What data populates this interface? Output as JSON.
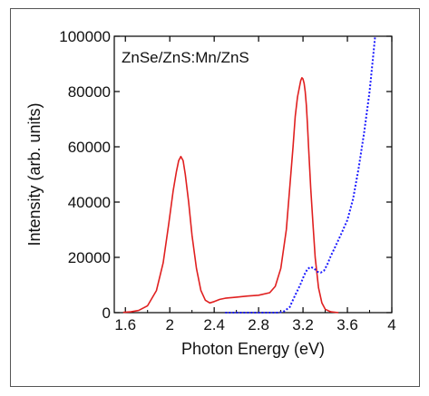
{
  "chart_data": {
    "type": "line",
    "title": "",
    "annotation": "ZnSe/ZnS:Mn/ZnS",
    "xlabel": "Photon Energy (eV)",
    "ylabel": "Intensity (arb. units)",
    "xlim": [
      1.5,
      4.0
    ],
    "ylim": [
      0,
      100000
    ],
    "x_ticks": [
      "1.6",
      "2",
      "2.4",
      "2.8",
      "3.2",
      "3.6",
      "4"
    ],
    "x_tick_values": [
      1.6,
      2.0,
      2.4,
      2.8,
      3.2,
      3.6,
      4.0
    ],
    "y_ticks": [
      "0",
      "20000",
      "40000",
      "60000",
      "80000",
      "100000"
    ],
    "y_tick_values": [
      0,
      20000,
      40000,
      60000,
      80000,
      100000
    ],
    "grid": false,
    "legend": "none",
    "series": [
      {
        "style": "solid",
        "color": "#e02020",
        "x": [
          1.58,
          1.65,
          1.72,
          1.8,
          1.88,
          1.94,
          1.99,
          2.03,
          2.06,
          2.08,
          2.1,
          2.12,
          2.14,
          2.17,
          2.2,
          2.24,
          2.28,
          2.32,
          2.36,
          2.4,
          2.45,
          2.5,
          2.6,
          2.7,
          2.8,
          2.9,
          2.95,
          3.0,
          3.05,
          3.08,
          3.11,
          3.13,
          3.15,
          3.17,
          3.18,
          3.19,
          3.2,
          3.21,
          3.22,
          3.23,
          3.24,
          3.25,
          3.27,
          3.29,
          3.31,
          3.34,
          3.37,
          3.4,
          3.45,
          3.52
        ],
        "y": [
          100,
          300,
          800,
          2500,
          8000,
          18000,
          32000,
          44000,
          51000,
          55000,
          56500,
          55000,
          50000,
          40000,
          28000,
          16000,
          8000,
          4500,
          3500,
          4000,
          4800,
          5200,
          5600,
          6000,
          6300,
          7200,
          9500,
          16000,
          30000,
          45000,
          60000,
          71000,
          78000,
          82000,
          84000,
          85000,
          84500,
          83000,
          80000,
          75000,
          68000,
          60000,
          45000,
          32000,
          20000,
          9000,
          3500,
          1200,
          300,
          0
        ]
      },
      {
        "style": "dotted",
        "color": "#1a1aff",
        "x": [
          2.5,
          2.6,
          2.7,
          2.8,
          2.9,
          2.98,
          3.03,
          3.08,
          3.12,
          3.15,
          3.18,
          3.21,
          3.24,
          3.27,
          3.3,
          3.33,
          3.36,
          3.39,
          3.42,
          3.45,
          3.48,
          3.51,
          3.55,
          3.6,
          3.65,
          3.7,
          3.75,
          3.8,
          3.83,
          3.85
        ],
        "y": [
          0,
          0,
          0,
          0,
          0,
          0,
          500,
          2000,
          5500,
          8000,
          10500,
          13500,
          15800,
          16500,
          16000,
          14800,
          14500,
          15200,
          17500,
          20500,
          23000,
          25500,
          29000,
          33500,
          41000,
          52000,
          65000,
          80000,
          92000,
          100000
        ]
      }
    ]
  }
}
